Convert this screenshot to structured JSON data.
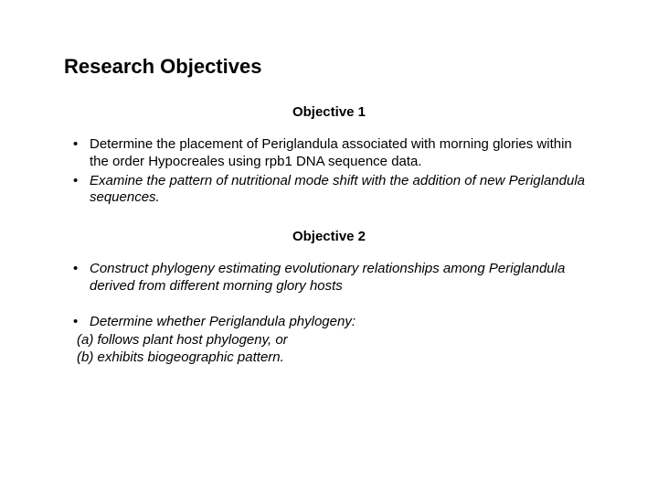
{
  "title": "Research Objectives",
  "objective1": {
    "heading": "Objective 1",
    "bullets": [
      "Determine the placement of Periglandula associated with morning glories within the order Hypocreales using rpb1 DNA sequence data.",
      "Examine the pattern of nutritional mode shift with the addition of new Periglandula sequences."
    ]
  },
  "objective2": {
    "heading": "Objective 2",
    "bullets": [
      "Construct phylogeny estimating evolutionary relationships among Periglandula derived from different morning glory hosts",
      "Determine whether Periglandula phylogeny:"
    ],
    "sub": [
      "(a) follows plant host phylogeny, or",
      "(b) exhibits biogeographic pattern."
    ]
  }
}
